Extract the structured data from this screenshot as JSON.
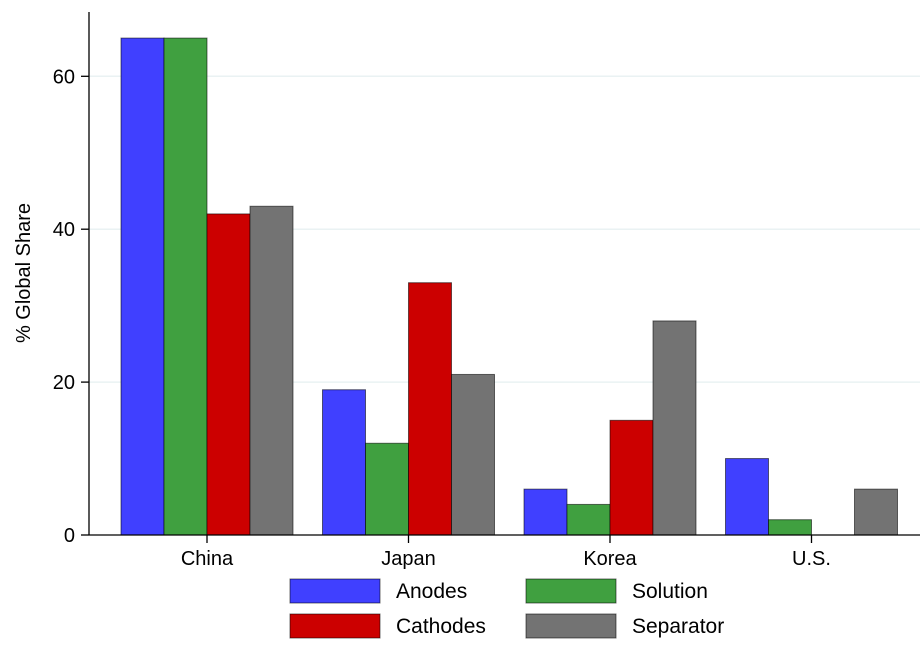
{
  "chart_data": {
    "type": "bar",
    "categories": [
      "China",
      "Japan",
      "Korea",
      "U.S."
    ],
    "series": [
      {
        "name": "Anodes",
        "values": [
          65,
          19,
          6,
          10
        ],
        "color": "#4040ff"
      },
      {
        "name": "Solution",
        "values": [
          65,
          12,
          4,
          2
        ],
        "color": "#40a040"
      },
      {
        "name": "Cathodes",
        "values": [
          42,
          33,
          15,
          0
        ],
        "color": "#cc0000"
      },
      {
        "name": "Separator",
        "values": [
          43,
          21,
          28,
          6
        ],
        "color": "#737373"
      }
    ],
    "ylabel": "% Global Share",
    "xlabel": "",
    "title": "",
    "ylim": [
      0,
      68
    ],
    "yticks": [
      0,
      20,
      40,
      60
    ],
    "grid": true,
    "legend_position": "bottom",
    "grid_color": "#eaf2f3"
  }
}
